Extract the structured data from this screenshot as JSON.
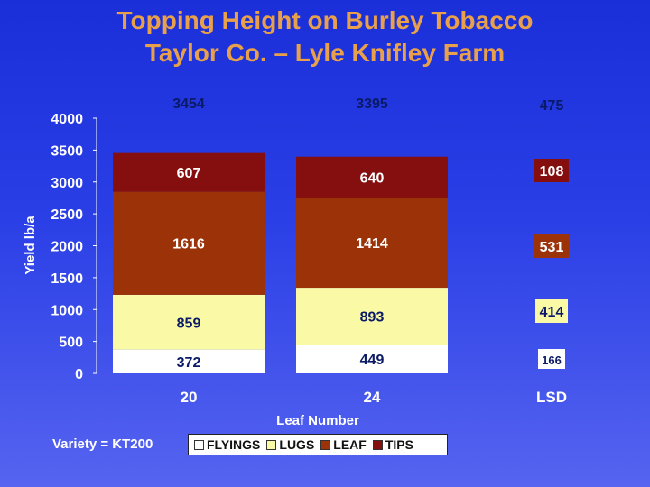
{
  "title_line1": "Topping Height on Burley Tobacco",
  "title_line2": "Taylor Co. – Lyle Knifley Farm",
  "variety": "Variety = KT200",
  "colors": {
    "background": "#2a3fe6",
    "title": "#e8a04a",
    "axis_text": "#ffffff",
    "total_text": "#0a1a66"
  },
  "chart_data": {
    "type": "bar",
    "stacked": true,
    "title": "Topping Height on Burley Tobacco",
    "subtitle": "Taylor Co. – Lyle Knifley Farm",
    "xlabel": "Leaf Number",
    "ylabel": "Yield lb/a",
    "ylim": [
      0,
      4000
    ],
    "yticks": [
      0,
      500,
      1000,
      1500,
      2000,
      2500,
      3000,
      3500,
      4000
    ],
    "grid": false,
    "legend_position": "bottom",
    "categories": [
      "20",
      "24"
    ],
    "series": [
      {
        "name": "FLYINGS",
        "values": [
          372,
          449
        ],
        "color": "#ffffff",
        "label_color": "#0a1a66"
      },
      {
        "name": "LUGS",
        "values": [
          859,
          893
        ],
        "color": "#fafaa6",
        "label_color": "#0a1a66"
      },
      {
        "name": "LEAF",
        "values": [
          1616,
          1414
        ],
        "color": "#9c3208",
        "label_color": "#ffffff"
      },
      {
        "name": "TIPS",
        "values": [
          607,
          640
        ],
        "color": "#850e0e",
        "label_color": "#ffffff"
      }
    ],
    "totals": [
      3454,
      3395
    ],
    "lsd": {
      "label": "LSD",
      "total": 475,
      "values": {
        "FLYINGS": 166,
        "LUGS": 414,
        "LEAF": 531,
        "TIPS": 108
      }
    }
  }
}
